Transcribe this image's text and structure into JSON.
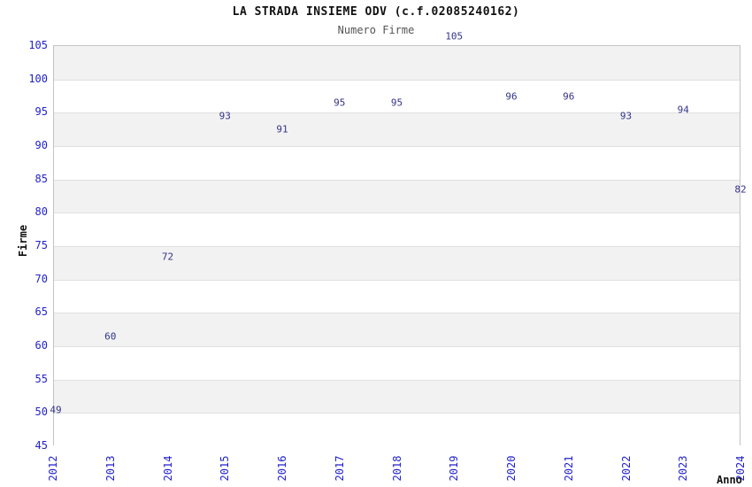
{
  "chart_data": {
    "type": "line",
    "title": "LA STRADA INSIEME ODV (c.f.02085240162)",
    "subtitle": "Numero Firme",
    "xlabel": "Anno",
    "ylabel": "Firme",
    "categories": [
      "2012",
      "2013",
      "2014",
      "2015",
      "2016",
      "2017",
      "2018",
      "2019",
      "2020",
      "2021",
      "2022",
      "2023",
      "2024"
    ],
    "series": [
      {
        "name": "Numero Firme",
        "values": [
          49,
          60,
          72,
          93,
          91,
          95,
          95,
          105,
          96,
          96,
          93,
          94,
          82
        ]
      }
    ],
    "ylim": [
      45,
      105
    ],
    "ytick_step": 5,
    "yticks": [
      45,
      50,
      55,
      60,
      65,
      70,
      75,
      80,
      85,
      90,
      95,
      100,
      105
    ],
    "grid": "horizontal alternating bands",
    "legend_position": "none",
    "data_labels": true,
    "colors": {
      "line": "#69a3dd",
      "tick_label": "#2222cc",
      "data_label": "#333388",
      "band_gray": "#f2f2f2",
      "band_white": "#ffffff",
      "gridline": "#e0e0e0",
      "plot_border": "#c3c3c3",
      "title": "#111111",
      "subtitle": "#555555"
    }
  }
}
